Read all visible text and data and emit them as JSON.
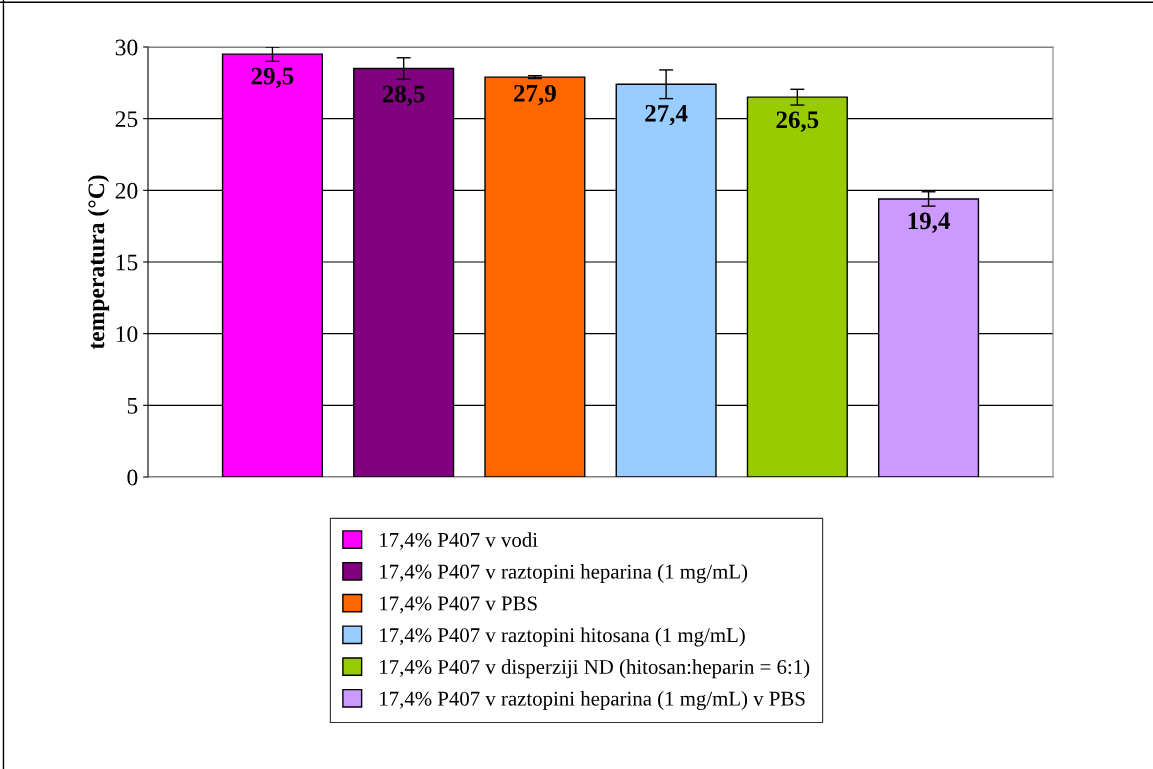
{
  "chart_data": {
    "type": "bar",
    "ylabel": "temperatura (°C)",
    "categories": [
      null
    ],
    "series": [
      {
        "name": "17,4% P407 v vodi",
        "color": "#ff00ff",
        "values": [
          29.5
        ],
        "errors": [
          0.5
        ],
        "value_labels": [
          "29,5"
        ]
      },
      {
        "name": "17,4% P407 v raztopini heparina (1 mg/mL)",
        "color": "#800080",
        "values": [
          28.5
        ],
        "errors": [
          0.75
        ],
        "value_labels": [
          "28,5"
        ]
      },
      {
        "name": "17,4% P407 v PBS",
        "color": "#ff6600",
        "values": [
          27.9
        ],
        "errors": [
          0.1
        ],
        "value_labels": [
          "27,9"
        ]
      },
      {
        "name": "17,4% P407 v raztopini hitosana (1 mg/mL)",
        "color": "#99ccff",
        "values": [
          27.4
        ],
        "errors": [
          1.0
        ],
        "value_labels": [
          "27,4"
        ]
      },
      {
        "name": "17,4% P407 v disperziji ND (hitosan:heparin = 6:1)",
        "color": "#99cc00",
        "values": [
          26.5
        ],
        "errors": [
          0.55
        ],
        "value_labels": [
          "26,5"
        ]
      },
      {
        "name": "17,4% P407 v raztopini heparina (1 mg/mL) v PBS",
        "color": "#cc99ff",
        "values": [
          19.4
        ],
        "errors": [
          0.5
        ],
        "value_labels": [
          "19,4"
        ]
      }
    ],
    "ylim": [
      0,
      30
    ],
    "yticks": [
      0,
      5,
      10,
      15,
      20,
      25,
      30
    ],
    "grid": "y",
    "legend": "bottom"
  }
}
